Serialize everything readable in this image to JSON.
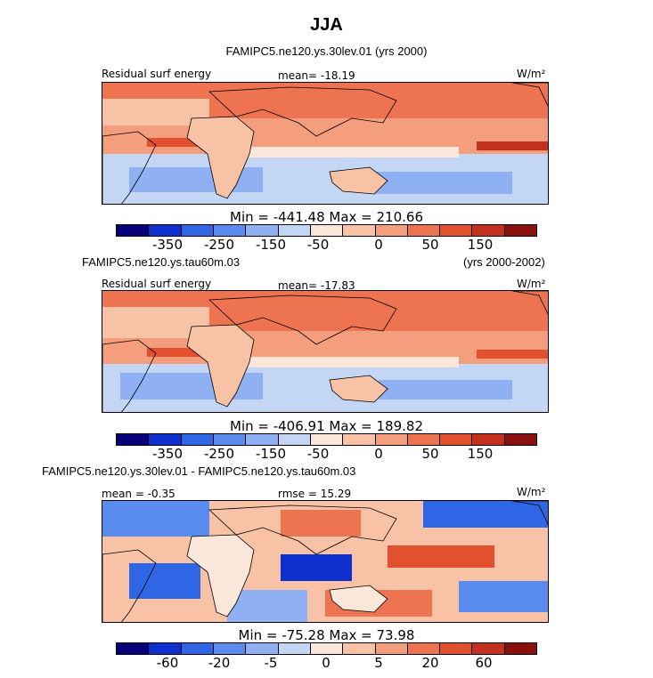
{
  "figure_title": "JJA",
  "colors": [
    "#08007a",
    "#0f2fcf",
    "#2f66e6",
    "#5a8cf0",
    "#8fb0f2",
    "#c3d7f5",
    "#fbe6da",
    "#f8c2a6",
    "#f49e7e",
    "#ee7351",
    "#e2502e",
    "#c3301d",
    "#8a0f0f"
  ],
  "chart_data": [
    {
      "type": "heatmap",
      "title": "FAMIPC5.ne120.ys.30lev.01 (yrs 2000)",
      "left_label": "Residual surf energy",
      "mean_text": "mean= -18.19",
      "units": "W/m²",
      "minmax": "Min = -441.48 Max = 210.66",
      "levels": [
        "-350",
        "-250",
        "-150",
        "-50",
        "0",
        "50",
        "150"
      ]
    },
    {
      "type": "heatmap",
      "title_left": "FAMIPC5.ne120.ys.tau60m.03",
      "title_right": "(yrs 2000-2002)",
      "left_label": "Residual surf energy",
      "mean_text": "mean= -17.83",
      "units": "W/m²",
      "minmax": "Min = -406.91 Max = 189.82",
      "levels": [
        "-350",
        "-250",
        "-150",
        "-50",
        "0",
        "50",
        "150"
      ]
    },
    {
      "type": "heatmap",
      "title": "FAMIPC5.ne120.ys.30lev.01 - FAMIPC5.ne120.ys.tau60m.03",
      "left_label": "mean = -0.35",
      "mid_text": "rmse = 15.29",
      "units": "W/m²",
      "minmax": "Min = -75.28 Max = 73.98",
      "levels": [
        "-60",
        "-20",
        "-5",
        "0",
        "5",
        "20",
        "60"
      ]
    }
  ]
}
